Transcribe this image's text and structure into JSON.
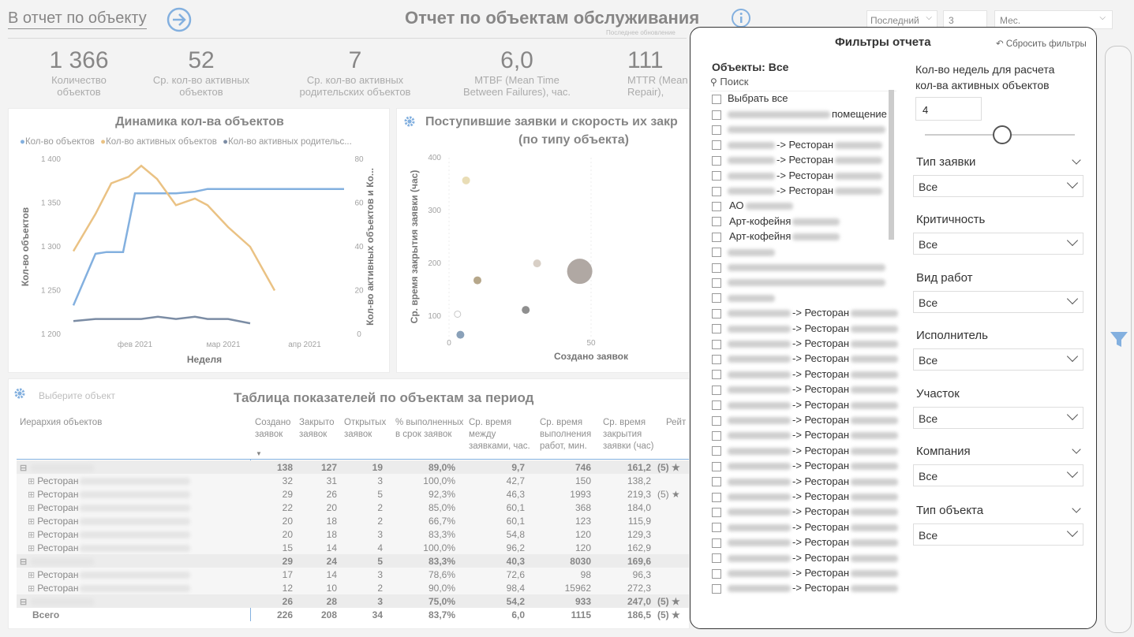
{
  "header": {
    "back_link": "В отчет по объекту",
    "title": "Отчет по объектам обслуживания",
    "last_update": "Последнее обновление",
    "period": {
      "mode": "Последний",
      "count": "3",
      "unit": "Мес."
    }
  },
  "kpis": [
    {
      "value": "1 366",
      "label1": "Количество",
      "label2": "объектов"
    },
    {
      "value": "52",
      "label1": "Ср. кол-во активных",
      "label2": "объектов"
    },
    {
      "value": "7",
      "label1": "Ср. кол-во активных",
      "label2": "родительских объектов"
    },
    {
      "value": "6,0",
      "label1": "MTBF (Mean Time",
      "label2": "Between Failures), час."
    },
    {
      "value": "111",
      "label1": "MTTR (Mean",
      "label2": "Repair),"
    }
  ],
  "line_chart_title": "Динамика кол-ва объектов",
  "scatter_title1": "Поступившие заявки и скорость их закр",
  "scatter_title2": "(по типу объекта)",
  "chart_data": [
    {
      "type": "line",
      "title": "Динамика кол-ва объектов",
      "xlabel": "Неделя",
      "ylabel": "Кол-во объектов",
      "y2label": "Кол-во активных объектов и Ко...",
      "x_ticks": [
        "фев 2021",
        "мар 2021",
        "апр 2021"
      ],
      "ylim": [
        1200,
        1400
      ],
      "y2lim": [
        0,
        80
      ],
      "y_ticks": [
        "1 400",
        "1 350",
        "1 300",
        "1 250",
        "1 200"
      ],
      "y2_ticks": [
        "80",
        "60",
        "40",
        "20",
        "0"
      ],
      "series": [
        {
          "name": "Кол-во объектов",
          "axis": "left",
          "color": "#1e6fc5",
          "values": [
            1233,
            1292,
            1294,
            1294,
            1361,
            1361,
            1361,
            1363,
            1366,
            1366,
            1366,
            1366,
            1366,
            1366,
            1366
          ]
        },
        {
          "name": "Кол-во активных объектов",
          "axis": "right",
          "color": "#d9901f",
          "values": [
            38,
            55,
            69,
            72,
            77,
            71,
            59,
            62,
            59,
            49,
            40,
            20
          ]
        },
        {
          "name": "Кол-во активных родительс...",
          "axis": "right",
          "color": "#0f2e5a",
          "values": [
            6,
            7,
            7,
            7,
            7,
            8,
            7,
            8,
            7,
            7,
            5
          ]
        }
      ]
    },
    {
      "type": "scatter",
      "title": "Поступившие заявки и скорость их закрытия (по типу объекта)",
      "xlabel": "Создано заявок",
      "ylabel": "Ср. время закрытия заявки (час)",
      "x_ticks": [
        "0",
        "50"
      ],
      "y_ticks": [
        "400",
        "300",
        "200",
        "100"
      ],
      "xlim": [
        0,
        85
      ],
      "ylim": [
        60,
        400
      ],
      "points": [
        {
          "x": 6,
          "y": 357,
          "size": 5,
          "color": "#d8c27a"
        },
        {
          "x": 10,
          "y": 168,
          "size": 5,
          "color": "#7b5f2a"
        },
        {
          "x": 31,
          "y": 200,
          "size": 5,
          "color": "#b8a898"
        },
        {
          "x": 46,
          "y": 185,
          "size": 16,
          "color": "#6f6258"
        },
        {
          "x": 27,
          "y": 112,
          "size": 5,
          "color": "#333"
        },
        {
          "x": 3,
          "y": 104,
          "size": 4,
          "color": "#fff"
        },
        {
          "x": 4,
          "y": 65,
          "size": 5,
          "color": "#2a5580"
        }
      ]
    }
  ],
  "table": {
    "settings_label": "Выберите объект",
    "title": "Таблица показателей по объектам за период",
    "headers": [
      "Иерархия объектов",
      "Создано заявок",
      "Закрыто заявок",
      "Открытых заявок",
      "% выполненных в срок заявок",
      "Ср. время между заявками, час.",
      "Ср. время выполнения работ, мин.",
      "Ср. время закрытия заявки (час)",
      "Рейт"
    ],
    "rows": [
      {
        "name": "",
        "group": true,
        "v": [
          "138",
          "127",
          "19",
          "89,0%",
          "9,7",
          "746",
          "161,2",
          "(5) ★"
        ]
      },
      {
        "name": "Ресторан",
        "v": [
          "32",
          "31",
          "3",
          "100,0%",
          "42,7",
          "150",
          "138,2",
          ""
        ]
      },
      {
        "name": "Ресторан",
        "v": [
          "29",
          "26",
          "5",
          "92,3%",
          "46,3",
          "1993",
          "219,3",
          "(5) ★"
        ]
      },
      {
        "name": "Ресторан",
        "v": [
          "22",
          "20",
          "2",
          "85,0%",
          "60,1",
          "368",
          "184,0",
          ""
        ]
      },
      {
        "name": "Ресторан",
        "v": [
          "20",
          "18",
          "2",
          "66,7%",
          "60,1",
          "123",
          "115,9",
          ""
        ]
      },
      {
        "name": "Ресторан",
        "v": [
          "20",
          "18",
          "3",
          "83,3%",
          "54,8",
          "120",
          "129,3",
          ""
        ]
      },
      {
        "name": "Ресторан",
        "v": [
          "15",
          "14",
          "4",
          "100,0%",
          "96,2",
          "120",
          "162,9",
          ""
        ]
      },
      {
        "name": "",
        "group": true,
        "v": [
          "29",
          "24",
          "5",
          "83,3%",
          "40,3",
          "8030",
          "169,6",
          ""
        ]
      },
      {
        "name": "Ресторан",
        "v": [
          "17",
          "14",
          "3",
          "78,6%",
          "72,6",
          "98",
          "96,3",
          ""
        ]
      },
      {
        "name": "Ресторан",
        "v": [
          "12",
          "10",
          "2",
          "90,0%",
          "98,4",
          "15962",
          "272,3",
          ""
        ]
      },
      {
        "name": "",
        "group": true,
        "v": [
          "26",
          "28",
          "3",
          "75,0%",
          "54,2",
          "933",
          "247,0",
          "(5) ★"
        ]
      },
      {
        "name": "Всего",
        "total": true,
        "v": [
          "226",
          "208",
          "34",
          "83,7%",
          "6,0",
          "1115",
          "186,5",
          "(5) ★"
        ]
      }
    ]
  },
  "filters": {
    "title": "Фильтры отчета",
    "reset": "Сбросить фильтры",
    "objects_label": "Объекты: Все",
    "search_placeholder": "Поиск",
    "select_all": "Выбрать все",
    "items": [
      "помещение",
      "",
      "-> Ресторан",
      "-> Ресторан",
      "-> Ресторан",
      "-> Ресторан",
      "АО",
      "Арт-кофейня",
      "Арт-кофейня",
      "",
      "",
      "",
      "",
      "-> Ресторан",
      "-> Ресторан",
      "-> Ресторан",
      "-> Ресторан",
      "-> Ресторан",
      "-> Ресторан",
      "-> Ресторан",
      "-> Ресторан",
      "-> Ресторан",
      "-> Ресторан",
      "-> Ресторан",
      "-> Ресторан",
      "-> Ресторан",
      "-> Ресторан",
      "-> Ресторан",
      "-> Ресторан",
      "-> Ресторан",
      "-> Ресторан",
      "-> Ресторан"
    ],
    "weeks_label1": "Кол-во недель для расчета",
    "weeks_label2": "кол-ва активных объектов",
    "weeks_value": "4",
    "slider_value": 4,
    "fields": [
      {
        "label": "Тип заявки",
        "value": "Все"
      },
      {
        "label": "Критичность",
        "value": "Все"
      },
      {
        "label": "Вид работ",
        "value": "Все"
      },
      {
        "label": "Исполнитель",
        "value": "Все"
      },
      {
        "label": "Участок",
        "value": "Все"
      },
      {
        "label": "Компания",
        "value": "Все"
      },
      {
        "label": "Тип объекта",
        "value": "Все"
      }
    ]
  }
}
